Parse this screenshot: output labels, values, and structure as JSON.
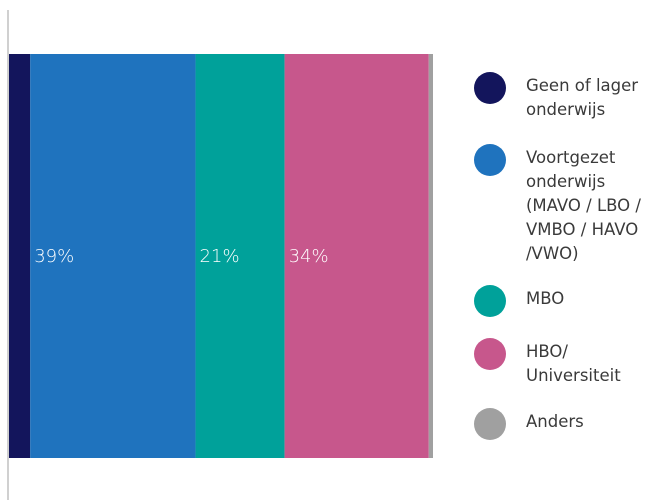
{
  "chart_data": {
    "type": "bar",
    "orientation": "horizontal",
    "stacked": true,
    "xlim": [
      0,
      100
    ],
    "series": [
      {
        "name": "Geen of lager onderwijs",
        "color": "#13155c",
        "values": [
          5
        ],
        "value_labels": [
          null
        ]
      },
      {
        "name": "Voortgezet onderwijs (MAVO / LBO / VMBO / HAVO /VWO)",
        "color": "#1f73be",
        "values": [
          39
        ],
        "value_labels": [
          "39%"
        ]
      },
      {
        "name": "MBO",
        "color": "#00a19a",
        "values": [
          21
        ],
        "value_labels": [
          "21%"
        ]
      },
      {
        "name": "HBO/ Universiteit",
        "color": "#c7578c",
        "values": [
          34
        ],
        "value_labels": [
          "34%"
        ]
      },
      {
        "name": "Anders",
        "color": "#a0a0a0",
        "values": [
          1
        ],
        "value_labels": [
          null
        ]
      }
    ],
    "legend": "right"
  }
}
